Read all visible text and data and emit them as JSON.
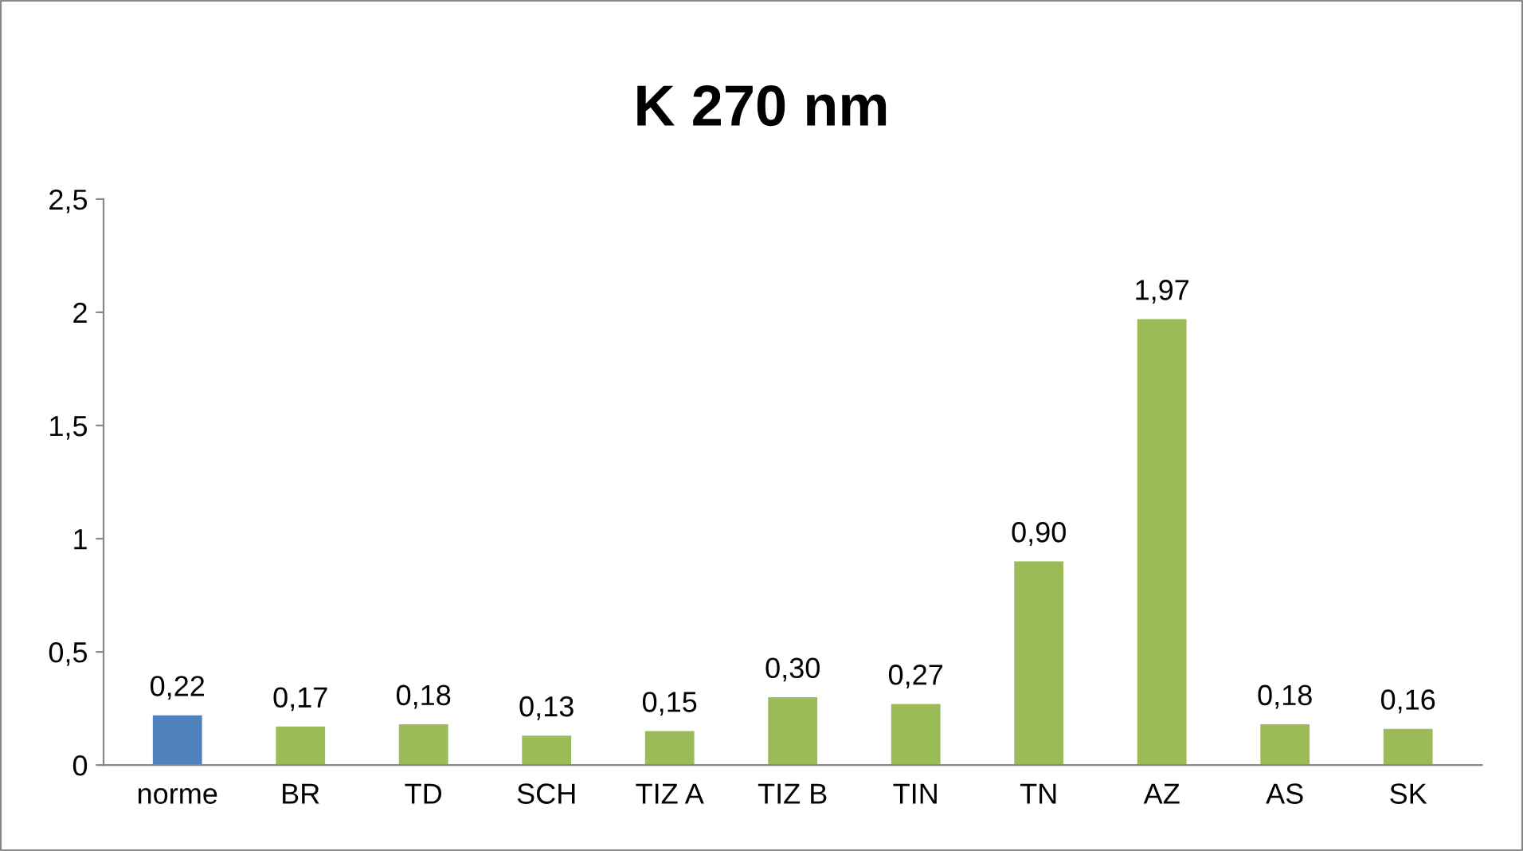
{
  "chart_data": {
    "type": "bar",
    "title": "K 270 nm",
    "categories": [
      "norme",
      "BR",
      "TD",
      "SCH",
      "TIZ A",
      "TIZ B",
      "TIN",
      "TN",
      "AZ",
      "AS",
      "SK"
    ],
    "values": [
      0.22,
      0.17,
      0.18,
      0.13,
      0.15,
      0.3,
      0.27,
      0.9,
      1.97,
      0.18,
      0.16
    ],
    "colors": [
      "#4f81bd",
      "#9bbb59",
      "#9bbb59",
      "#9bbb59",
      "#9bbb59",
      "#9bbb59",
      "#9bbb59",
      "#9bbb59",
      "#9bbb59",
      "#9bbb59",
      "#9bbb59"
    ],
    "value_labels": [
      "0,22",
      "0,17",
      "0,18",
      "0,13",
      "0,15",
      "0,30",
      "0,27",
      "0,90",
      "1,97",
      "0,18",
      "0,16"
    ],
    "ylim": [
      0,
      2.5
    ],
    "yticks": [
      0,
      {
        "value": 0.5,
        "label": "0,5"
      },
      1,
      {
        "value": 1.5,
        "label": "1,5"
      },
      2,
      {
        "value": 2.5,
        "label": "2,5"
      }
    ],
    "grid": false,
    "legend": false
  }
}
